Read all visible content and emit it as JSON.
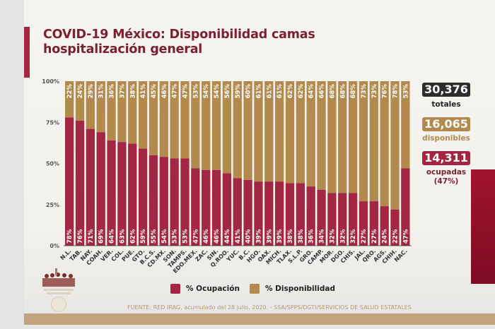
{
  "title": "COVID-19 México: Disponibilidad camas hospitalización general",
  "stats": {
    "total_value": "30,376",
    "total_label": "totales",
    "available_value": "16,065",
    "available_label": "disponibles",
    "occupied_value": "14,311",
    "occupied_label": "ocupadas",
    "occupied_pct": "(47%)"
  },
  "legend": {
    "occupancy": "% Ocupación",
    "availability": "% Disponibilidad"
  },
  "source": "FUENTE: RED IRAG, acumulado del 28 julio, 2020. -  SSA/SPPS/DGTI/SERVICIOS DE SALUD ESTATALES",
  "colors": {
    "occupancy": "#a32743",
    "availability": "#b38a4e",
    "title": "#7a1f35",
    "total_box": "#2d2d2d",
    "available_box": "#b38a4e",
    "occupied_box": "#a32743"
  },
  "chart_data": {
    "type": "bar",
    "stacked": true,
    "title": "COVID-19 México: Disponibilidad camas hospitalización general",
    "xlabel": "",
    "ylabel": "",
    "ylim": [
      0,
      100
    ],
    "yticks": [
      "0%",
      "25%",
      "50%",
      "75%",
      "100%"
    ],
    "categories": [
      "N.L.",
      "TAB.",
      "NAY.",
      "COAH.",
      "VER.",
      "COL.",
      "PUE.",
      "GTO.",
      "B.C.S.",
      "CD.MX.",
      "SON.",
      "TAMPS.",
      "EDO.MEX.",
      "ZAC.",
      "SIN.",
      "Q.ROO.",
      "YUC.",
      "B.C.",
      "HGO.",
      "OAX.",
      "MICH.",
      "TLAX.",
      "S.L.P.",
      "GRO.",
      "CAMP.",
      "MOR.",
      "DGO.",
      "CHIS.",
      "JAL.",
      "QRO.",
      "AGS.",
      "CHIH.",
      "NAC."
    ],
    "series": [
      {
        "name": "% Ocupación",
        "values": [
          78,
          76,
          71,
          69,
          64,
          63,
          62,
          59,
          55,
          54,
          53,
          53,
          47,
          46,
          46,
          44,
          41,
          40,
          39,
          39,
          39,
          38,
          38,
          36,
          34,
          32,
          32,
          32,
          27,
          27,
          24,
          22,
          47
        ]
      },
      {
        "name": "% Disponibilidad",
        "values": [
          22,
          24,
          29,
          31,
          36,
          37,
          38,
          41,
          45,
          46,
          47,
          47,
          53,
          54,
          54,
          56,
          59,
          60,
          61,
          61,
          61,
          62,
          62,
          64,
          66,
          68,
          68,
          68,
          73,
          73,
          76,
          78,
          53
        ]
      }
    ],
    "legend_position": "bottom",
    "grid": false
  }
}
